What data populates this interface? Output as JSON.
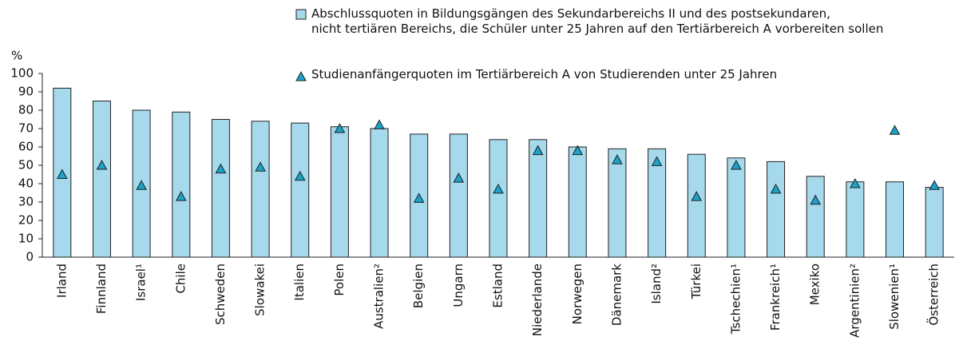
{
  "chart_data": {
    "type": "bar",
    "y_label": "%",
    "categories": [
      "Irland",
      "Finnland",
      "Israel¹",
      "Chile",
      "Schweden",
      "Slowakei",
      "Italien",
      "Polen",
      "Australien²",
      "Belgien",
      "Ungarn",
      "Estland",
      "Niederlande",
      "Norwegen",
      "Dänemark",
      "Island²",
      "Türkei",
      "Tschechien¹",
      "Frankreich¹",
      "Mexiko",
      "Argentinien²",
      "Slowenien¹",
      "Österreich"
    ],
    "series": [
      {
        "name": "Abschlussquoten in Bildungsgängen des Sekundarbereichs II und des postsekundaren,\nnicht tertiären Bereichs, die Schüler unter 25 Jahren auf den Tertiärbereich A vorbereiten sollen",
        "type": "bar",
        "color": "#a6d9ec",
        "values": [
          92,
          85,
          80,
          79,
          75,
          74,
          73,
          71,
          70,
          67,
          67,
          64,
          64,
          60,
          59,
          59,
          56,
          54,
          52,
          44,
          41,
          41,
          38
        ]
      },
      {
        "name": "Studienanfängerquoten im Tertiärbereich A von Studierenden unter 25 Jahren",
        "type": "marker",
        "color": "#1aa2c8",
        "values": [
          45,
          50,
          39,
          33,
          48,
          49,
          44,
          70,
          72,
          32,
          43,
          37,
          58,
          58,
          53,
          52,
          33,
          50,
          37,
          31,
          40,
          69,
          39
        ]
      }
    ],
    "ylim": [
      0,
      100
    ],
    "yticks": [
      0,
      10,
      20,
      30,
      40,
      50,
      60,
      70,
      80,
      90,
      100
    ],
    "grid": false
  }
}
